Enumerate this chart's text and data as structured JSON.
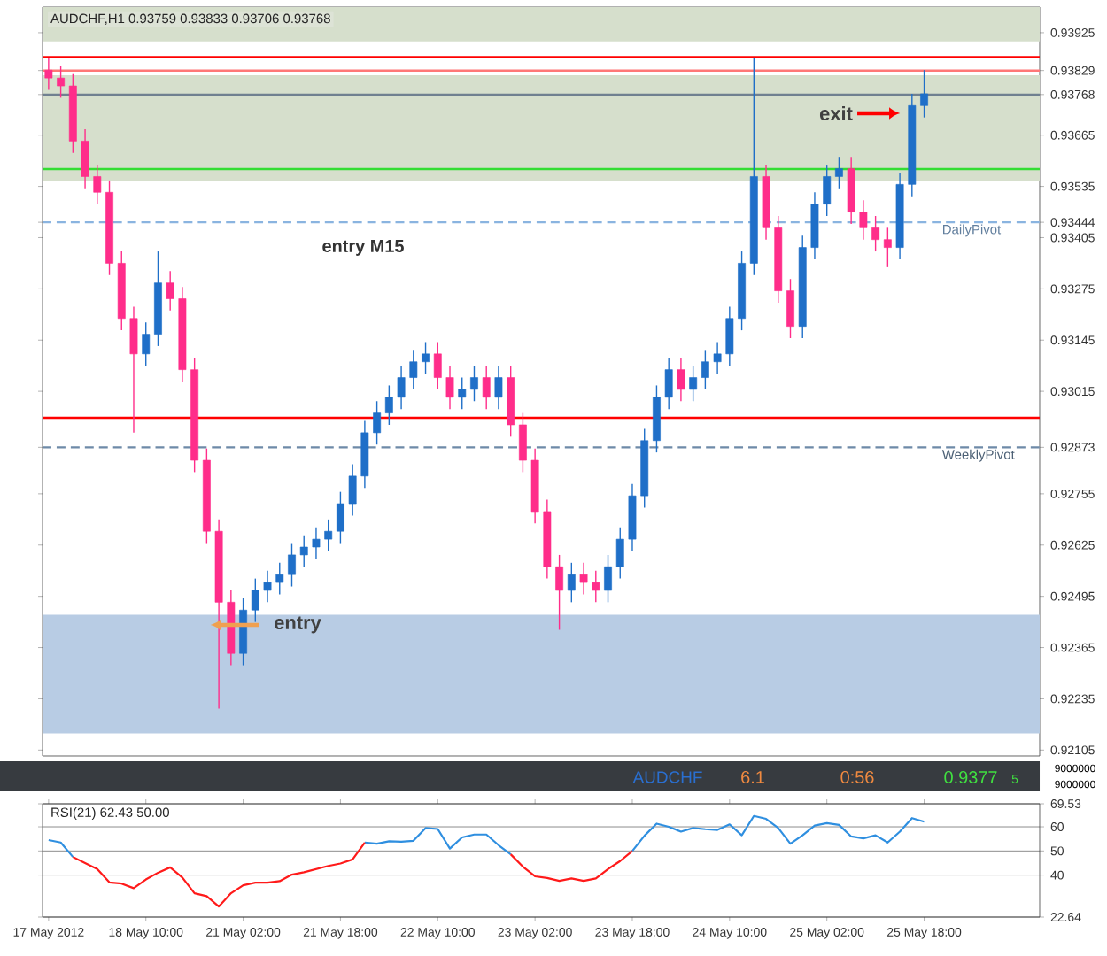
{
  "chart_data": [
    {
      "type": "candlestick",
      "title": "AUDCHF,H1 0.93759 0.93833 0.93706 0.93768",
      "categories": [
        null,
        null,
        null,
        null,
        null,
        null,
        null,
        null,
        null,
        null,
        null,
        null,
        null,
        null,
        null,
        null,
        null,
        null,
        null,
        null,
        null,
        null,
        null,
        null,
        null,
        null,
        null,
        null,
        null,
        null,
        null,
        null,
        null,
        null,
        null,
        null,
        null,
        null,
        null,
        null,
        null,
        null,
        null,
        null,
        null,
        null,
        null,
        null,
        null,
        null,
        null,
        null,
        null,
        null,
        null,
        null,
        null,
        null,
        null,
        null,
        null,
        null,
        null,
        null,
        null,
        null,
        null,
        null,
        null,
        null,
        null,
        null,
        null,
        null,
        null,
        null,
        null,
        null,
        null,
        null,
        null,
        null
      ],
      "ohlc": [
        [
          0.9383,
          0.9386,
          0.9378,
          0.9381
        ],
        [
          0.9381,
          0.9384,
          0.9376,
          0.9379
        ],
        [
          0.9379,
          0.9382,
          0.9362,
          0.9365
        ],
        [
          0.9365,
          0.9368,
          0.9353,
          0.9356
        ],
        [
          0.9356,
          0.9359,
          0.9349,
          0.9352
        ],
        [
          0.9352,
          0.9355,
          0.9331,
          0.9334
        ],
        [
          0.9334,
          0.9337,
          0.9317,
          0.932
        ],
        [
          0.932,
          0.9323,
          0.9291,
          0.9311
        ],
        [
          0.9311,
          0.9319,
          0.9308,
          0.9316
        ],
        [
          0.9316,
          0.9337,
          0.9313,
          0.9329
        ],
        [
          0.9329,
          0.9332,
          0.9322,
          0.9325
        ],
        [
          0.9325,
          0.9328,
          0.9304,
          0.9307
        ],
        [
          0.9307,
          0.931,
          0.9281,
          0.9284
        ],
        [
          0.9284,
          0.9287,
          0.9263,
          0.9266
        ],
        [
          0.9266,
          0.9269,
          0.9221,
          0.9248
        ],
        [
          0.9248,
          0.9251,
          0.9232,
          0.9235
        ],
        [
          0.9235,
          0.9249,
          0.9232,
          0.9246
        ],
        [
          0.9246,
          0.9254,
          0.9243,
          0.9251
        ],
        [
          0.9251,
          0.9256,
          0.9248,
          0.9253
        ],
        [
          0.9253,
          0.9258,
          0.925,
          0.9255
        ],
        [
          0.9255,
          0.9263,
          0.9252,
          0.926
        ],
        [
          0.926,
          0.9265,
          0.9257,
          0.9262
        ],
        [
          0.9262,
          0.9267,
          0.9259,
          0.9264
        ],
        [
          0.9264,
          0.9269,
          0.9261,
          0.9266
        ],
        [
          0.9266,
          0.9276,
          0.9263,
          0.9273
        ],
        [
          0.9273,
          0.9283,
          0.927,
          0.928
        ],
        [
          0.928,
          0.9294,
          0.9277,
          0.9291
        ],
        [
          0.9291,
          0.9299,
          0.9288,
          0.9296
        ],
        [
          0.9296,
          0.9303,
          0.9293,
          0.93
        ],
        [
          0.93,
          0.9308,
          0.9297,
          0.9305
        ],
        [
          0.9305,
          0.9312,
          0.9302,
          0.9309
        ],
        [
          0.9309,
          0.9314,
          0.9306,
          0.9311
        ],
        [
          0.9311,
          0.9314,
          0.9302,
          0.9305
        ],
        [
          0.9305,
          0.9308,
          0.9297,
          0.93
        ],
        [
          0.93,
          0.9305,
          0.9297,
          0.9302
        ],
        [
          0.9302,
          0.9308,
          0.9299,
          0.9305
        ],
        [
          0.9305,
          0.9308,
          0.9297,
          0.93
        ],
        [
          0.93,
          0.9308,
          0.9297,
          0.9305
        ],
        [
          0.9305,
          0.9308,
          0.929,
          0.9293
        ],
        [
          0.9293,
          0.9296,
          0.9281,
          0.9284
        ],
        [
          0.9284,
          0.9287,
          0.9268,
          0.9271
        ],
        [
          0.9271,
          0.9274,
          0.9254,
          0.9257
        ],
        [
          0.9257,
          0.926,
          0.9241,
          0.9251
        ],
        [
          0.9251,
          0.9258,
          0.9248,
          0.9255
        ],
        [
          0.9255,
          0.9258,
          0.925,
          0.9253
        ],
        [
          0.9253,
          0.9256,
          0.9248,
          0.9251
        ],
        [
          0.9251,
          0.926,
          0.9248,
          0.9257
        ],
        [
          0.9257,
          0.9267,
          0.9254,
          0.9264
        ],
        [
          0.9264,
          0.9278,
          0.9261,
          0.9275
        ],
        [
          0.9275,
          0.9292,
          0.9272,
          0.9289
        ],
        [
          0.9289,
          0.9303,
          0.9286,
          0.93
        ],
        [
          0.93,
          0.931,
          0.9297,
          0.9307
        ],
        [
          0.9307,
          0.931,
          0.9299,
          0.9302
        ],
        [
          0.9302,
          0.9308,
          0.9299,
          0.9305
        ],
        [
          0.9305,
          0.9312,
          0.9302,
          0.9309
        ],
        [
          0.9309,
          0.9314,
          0.9306,
          0.9311
        ],
        [
          0.9311,
          0.9323,
          0.9308,
          0.932
        ],
        [
          0.932,
          0.9337,
          0.9317,
          0.9334
        ],
        [
          0.9334,
          0.9386,
          0.9331,
          0.9356
        ],
        [
          0.9356,
          0.9359,
          0.934,
          0.9343
        ],
        [
          0.9343,
          0.9346,
          0.9324,
          0.9327
        ],
        [
          0.9327,
          0.933,
          0.9315,
          0.9318
        ],
        [
          0.9318,
          0.9341,
          0.9315,
          0.9338
        ],
        [
          0.9338,
          0.9352,
          0.9335,
          0.9349
        ],
        [
          0.9349,
          0.9359,
          0.9346,
          0.9356
        ],
        [
          0.9356,
          0.9361,
          0.9353,
          0.9358
        ],
        [
          0.9358,
          0.9361,
          0.9344,
          0.9347
        ],
        [
          0.9347,
          0.935,
          0.934,
          0.9343
        ],
        [
          0.9343,
          0.9346,
          0.9337,
          0.934
        ],
        [
          0.934,
          0.9343,
          0.9333,
          0.9338
        ],
        [
          0.9338,
          0.9357,
          0.9335,
          0.9354
        ],
        [
          0.9354,
          0.9377,
          0.9351,
          0.9374
        ],
        [
          0.9374,
          0.9383,
          0.9371,
          0.9377
        ],
        null,
        null,
        null,
        null,
        null,
        null,
        null,
        null,
        null
      ],
      "colors": [
        "#ff2d8a",
        "#ff2d8a",
        "#ff2d8a",
        "#ff2d8a",
        "#ff2d8a",
        "#ff2d8a",
        "#ff2d8a",
        "#ff2d8a",
        "#1f6fc8",
        "#1f6fc8",
        "#ff2d8a",
        "#ff2d8a",
        "#ff2d8a",
        "#ff2d8a",
        "#ff2d8a",
        "#ff2d8a",
        "#1f6fc8",
        "#1f6fc8",
        "#1f6fc8",
        "#1f6fc8",
        "#1f6fc8",
        "#1f6fc8",
        "#1f6fc8",
        "#1f6fc8",
        "#1f6fc8",
        "#1f6fc8",
        "#1f6fc8",
        "#1f6fc8",
        "#1f6fc8",
        "#1f6fc8",
        "#1f6fc8",
        "#1f6fc8",
        "#ff2d8a",
        "#ff2d8a",
        "#1f6fc8",
        "#1f6fc8",
        "#ff2d8a",
        "#1f6fc8",
        "#ff2d8a",
        "#ff2d8a",
        "#ff2d8a",
        "#ff2d8a",
        "#ff2d8a",
        "#1f6fc8",
        "#ff2d8a",
        "#ff2d8a",
        "#1f6fc8",
        "#1f6fc8",
        "#1f6fc8",
        "#1f6fc8",
        "#1f6fc8",
        "#1f6fc8",
        "#ff2d8a",
        "#1f6fc8",
        "#1f6fc8",
        "#1f6fc8",
        "#1f6fc8",
        "#1f6fc8",
        "#1f6fc8",
        "#ff2d8a",
        "#ff2d8a",
        "#ff2d8a",
        "#1f6fc8",
        "#1f6fc8",
        "#1f6fc8",
        "#1f6fc8",
        "#ff2d8a",
        "#ff2d8a",
        "#ff2d8a",
        "#ff2d8a",
        "#1f6fc8",
        "#1f6fc8",
        "#1f6fc8",
        null,
        null,
        null,
        null,
        null,
        null,
        null,
        null,
        null
      ],
      "ylim": [
        0.9209,
        0.9399
      ],
      "yticks": [
        0.93925,
        0.93829,
        0.93768,
        0.93665,
        0.93535,
        0.93444,
        0.93405,
        0.93275,
        0.93145,
        0.93015,
        0.92873,
        0.92755,
        0.92625,
        0.92495,
        0.92365,
        0.92235,
        0.92105
      ],
      "bands": [
        {
          "axis": "y",
          "from": 0.92147,
          "to": 0.92448,
          "color": "#b8cce4"
        },
        {
          "axis": "y",
          "from": 0.93548,
          "to": 0.93817,
          "color": "#d6dfcc"
        },
        {
          "axis": "y",
          "from": 0.93903,
          "to": 0.9399,
          "color": "#d6dfcc"
        }
      ],
      "ref_lines": [
        {
          "axis": "y",
          "value": 0.93863,
          "color": "#ff0000",
          "line_style": "solid"
        },
        {
          "axis": "y",
          "value": 0.93829,
          "color": "#ff7777",
          "line_style": "solid"
        },
        {
          "axis": "y",
          "value": 0.93768,
          "color": "#708090",
          "line_style": "solid"
        },
        {
          "axis": "y",
          "value": 0.93579,
          "color": "#33dd33",
          "line_style": "solid"
        },
        {
          "axis": "y",
          "value": 0.93444,
          "color": "#8ab4e0",
          "line_style": "dashed",
          "label": "DailyPivot"
        },
        {
          "axis": "y",
          "value": 0.92948,
          "color": "#ff0000",
          "line_style": "solid"
        },
        {
          "axis": "y",
          "value": 0.92873,
          "color": "#6e8aa8",
          "line_style": "dashed",
          "label": "WeeklyPivot"
        }
      ],
      "annotations": [
        "entry",
        "exit",
        "entry M15"
      ]
    },
    {
      "type": "line",
      "title": "RSI(21) 62.43 50.00",
      "categories": [
        "17 May 2012",
        null,
        null,
        null,
        null,
        null,
        null,
        null,
        "18 May 10:00",
        null,
        null,
        null,
        null,
        null,
        null,
        null,
        "21 May 02:00",
        null,
        null,
        null,
        null,
        null,
        null,
        null,
        "21 May 18:00",
        null,
        null,
        null,
        null,
        null,
        null,
        null,
        "22 May 10:00",
        null,
        null,
        null,
        null,
        null,
        null,
        null,
        "23 May 02:00",
        null,
        null,
        null,
        null,
        null,
        null,
        null,
        "23 May 18:00",
        null,
        null,
        null,
        null,
        null,
        null,
        null,
        "24 May 10:00",
        null,
        null,
        null,
        null,
        null,
        null,
        null,
        "25 May 02:00",
        null,
        null,
        null,
        null,
        null,
        null,
        null,
        "25 May 18:00",
        null,
        null,
        null,
        null,
        null,
        null,
        null,
        null,
        null
      ],
      "series": [
        {
          "color": "#2f8fe0",
          "values": [
            54.5,
            53.5,
            47.5,
            null,
            null,
            null,
            null,
            null,
            null,
            null,
            null,
            null,
            null,
            null,
            null,
            null,
            null,
            null,
            null,
            null,
            null,
            null,
            null,
            null,
            null,
            null,
            53.5,
            53.0,
            54.0,
            53.8,
            54.2,
            59.5,
            59.1,
            51.0,
            55.6,
            56.8,
            56.8,
            52.4,
            48.6,
            null,
            null,
            null,
            null,
            null,
            null,
            null,
            null,
            null,
            50.0,
            56.3,
            61.3,
            60.0,
            58.0,
            59.5,
            59.0,
            58.7,
            61.0,
            56.5,
            64.5,
            63.3,
            59.5,
            53.0,
            56.5,
            60.5,
            61.5,
            60.8,
            56.0,
            55.2,
            56.5,
            53.5,
            58.0,
            63.6,
            62.1,
            null,
            null,
            null,
            null,
            null,
            null,
            null,
            null,
            null
          ]
        },
        {
          "color": "#ff1a1a",
          "values": [
            null,
            null,
            47.5,
            45.0,
            42.5,
            37.0,
            36.5,
            34.6,
            38.2,
            41.0,
            43.2,
            39.0,
            32.5,
            31.3,
            27.0,
            32.5,
            35.8,
            36.9,
            36.9,
            37.5,
            40.2,
            41.2,
            42.5,
            43.8,
            44.8,
            46.5,
            53.5,
            null,
            null,
            null,
            null,
            null,
            null,
            null,
            null,
            null,
            null,
            null,
            48.6,
            43.5,
            39.5,
            38.8,
            37.6,
            38.6,
            37.6,
            38.6,
            42.5,
            45.8,
            50.0,
            null,
            null,
            null,
            null,
            null,
            null,
            null,
            null,
            null,
            null,
            null,
            null,
            null,
            null,
            null,
            null,
            null,
            null,
            null,
            null,
            null,
            null,
            null,
            null,
            null,
            null,
            null,
            null,
            null,
            null,
            null,
            null,
            null
          ]
        }
      ],
      "ylim": [
        22.64,
        69.53
      ],
      "yticks": [
        22.64,
        40,
        50,
        60,
        69.53
      ],
      "grid": "y",
      "annotations": [
        "AUDCHF",
        "6.1",
        "0:56",
        "0.9377",
        "5",
        "9000000",
        "9000000"
      ]
    }
  ]
}
